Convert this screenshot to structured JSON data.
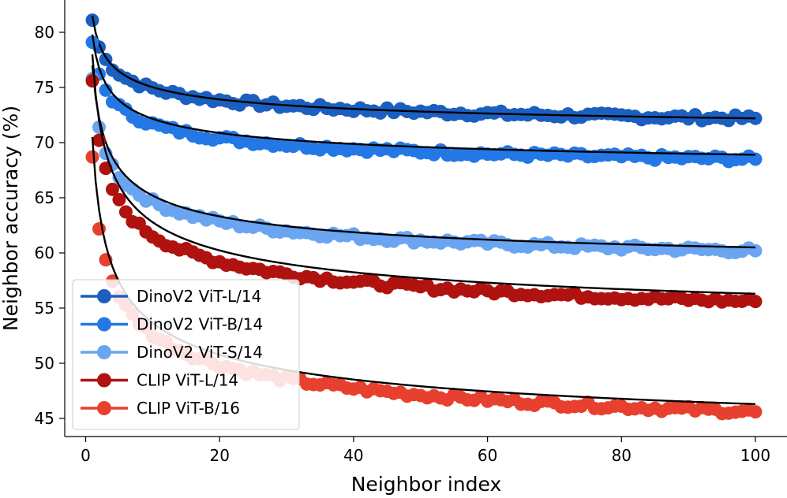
{
  "chart_data": {
    "type": "line",
    "title": "",
    "xlabel": "Neighbor index",
    "ylabel": "Neighbor accuracy (%)",
    "xlim": [
      -4,
      105
    ],
    "ylim": [
      43.5,
      84.5
    ],
    "xticks": [
      0,
      20,
      40,
      60,
      80,
      100
    ],
    "yticks": [
      45,
      50,
      55,
      60,
      65,
      70,
      75,
      80
    ],
    "grid": false,
    "legend_position": "lower-left",
    "fit_color": "#000000",
    "series": [
      {
        "name": "DinoV2 ViT-L/14",
        "color": "#1b5fc0",
        "marker": "circle",
        "start": 81.1,
        "end": 72.2,
        "fit_start": 81.5,
        "fit_end": 72.2,
        "power": 0.36
      },
      {
        "name": "DinoV2 ViT-B/14",
        "color": "#2378e6",
        "marker": "circle",
        "start": 79.1,
        "end": 68.5,
        "fit_start": 79.8,
        "fit_end": 68.9,
        "power": 0.37
      },
      {
        "name": "DinoV2 ViT-S/14",
        "color": "#6aa5f2",
        "marker": "circle",
        "start": 75.8,
        "end": 60.2,
        "fit_start": 77.0,
        "fit_end": 60.5,
        "power": 0.4
      },
      {
        "name": "CLIP ViT-L/14",
        "color": "#b0120f",
        "marker": "circle",
        "start": 75.6,
        "end": 55.6,
        "fit_start": 78.0,
        "fit_end": 56.3,
        "power": 0.37
      },
      {
        "name": "CLIP ViT-B/16",
        "color": "#e8402e",
        "marker": "circle",
        "start": 68.7,
        "end": 45.6,
        "fit_start": 70.5,
        "fit_end": 46.3,
        "power": 0.36
      }
    ]
  }
}
